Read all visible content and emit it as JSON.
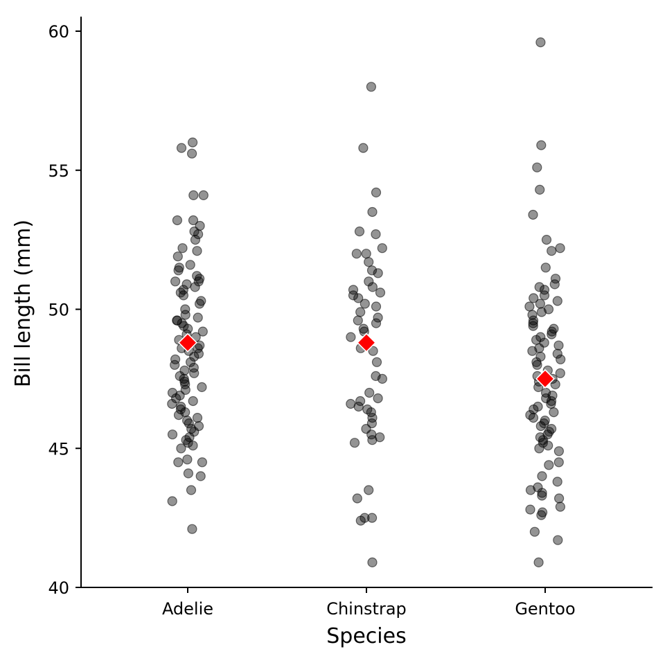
{
  "chart_data": {
    "type": "scatter",
    "title": "",
    "xlabel": "Species",
    "ylabel": "Bill length (mm)",
    "categories": [
      "Adelie",
      "Chinstrap",
      "Gentoo"
    ],
    "ylim": [
      40,
      60
    ],
    "yticks": [
      40,
      45,
      50,
      55,
      60
    ],
    "grid": false,
    "legend": "none",
    "point_color": "#000000",
    "mean_color": "#ff0000",
    "series": [
      {
        "values": [
          56.0,
          55.8,
          55.6,
          54.1,
          54.1,
          53.2,
          53.2,
          53.0,
          52.8,
          52.7,
          52.5,
          52.2,
          52.1,
          51.9,
          51.6,
          51.5,
          51.4,
          51.2,
          51.1,
          51.0,
          51.0,
          50.9,
          50.8,
          50.7,
          50.6,
          50.5,
          50.3,
          50.2,
          50.0,
          49.8,
          49.7,
          49.6,
          49.6,
          49.5,
          49.4,
          49.3,
          49.2,
          49.1,
          49.0,
          48.9,
          48.8,
          48.7,
          48.6,
          48.6,
          48.5,
          48.4,
          48.3,
          48.2,
          48.1,
          48.0,
          47.9,
          47.8,
          47.7,
          47.6,
          47.5,
          47.4,
          47.3,
          47.2,
          47.1,
          47.0,
          46.9,
          46.8,
          46.7,
          46.6,
          46.5,
          46.4,
          46.3,
          46.2,
          46.1,
          46.0,
          45.9,
          45.8,
          45.7,
          45.6,
          45.5,
          45.4,
          45.3,
          45.2,
          45.1,
          45.0,
          44.6,
          44.5,
          44.5,
          44.1,
          44.0,
          43.5,
          43.1,
          42.1
        ]
      },
      {
        "values": [
          58.0,
          55.8,
          54.2,
          53.5,
          52.8,
          52.7,
          52.2,
          52.0,
          52.0,
          51.7,
          51.4,
          51.3,
          51.0,
          50.8,
          50.7,
          50.6,
          50.5,
          50.4,
          50.2,
          50.1,
          49.9,
          49.7,
          49.6,
          49.5,
          49.3,
          49.2,
          49.0,
          48.6,
          48.5,
          48.1,
          47.6,
          47.5,
          47.0,
          46.8,
          46.7,
          46.6,
          46.5,
          46.4,
          46.3,
          46.1,
          45.9,
          45.7,
          45.5,
          45.4,
          45.3,
          45.2,
          43.5,
          43.2,
          42.5,
          42.5,
          42.4,
          40.9
        ]
      },
      {
        "values": [
          59.6,
          55.9,
          55.1,
          54.3,
          53.4,
          52.5,
          52.2,
          52.1,
          51.5,
          51.1,
          50.9,
          50.8,
          50.7,
          50.5,
          50.4,
          50.3,
          50.2,
          50.1,
          50.0,
          49.9,
          49.8,
          49.6,
          49.5,
          49.4,
          49.3,
          49.2,
          49.1,
          49.0,
          48.9,
          48.8,
          48.7,
          48.6,
          48.5,
          48.4,
          48.3,
          48.2,
          48.1,
          48.0,
          47.8,
          47.7,
          47.6,
          47.5,
          47.4,
          47.3,
          47.2,
          47.0,
          46.9,
          46.8,
          46.7,
          46.6,
          46.5,
          46.4,
          46.3,
          46.2,
          46.1,
          46.0,
          45.9,
          45.8,
          45.7,
          45.6,
          45.5,
          45.4,
          45.3,
          45.2,
          45.1,
          45.0,
          44.9,
          44.5,
          44.4,
          44.0,
          43.8,
          43.6,
          43.5,
          43.4,
          43.3,
          43.2,
          42.9,
          42.8,
          42.7,
          42.6,
          42.0,
          41.7,
          40.9
        ]
      }
    ],
    "means": [
      48.8,
      48.8,
      47.5
    ]
  }
}
